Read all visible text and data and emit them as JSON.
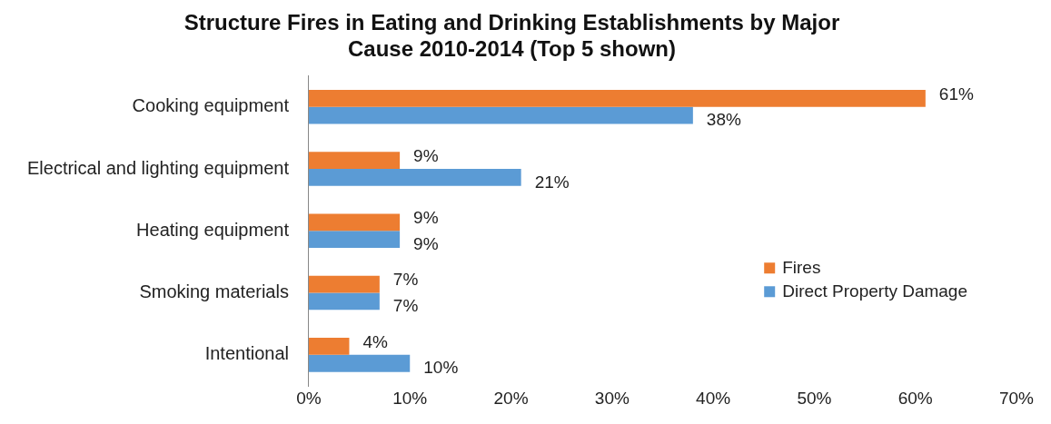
{
  "chart_data": {
    "type": "bar",
    "orientation": "horizontal",
    "title": "Structure Fires in Eating and Drinking Establishments by Major Cause 2010-2014 (Top 5 shown)",
    "categories": [
      "Cooking equipment",
      "Electrical and lighting equipment",
      "Heating equipment",
      "Smoking materials",
      "Intentional"
    ],
    "series": [
      {
        "name": "Fires",
        "color": "#ed7d31",
        "values": [
          61,
          9,
          9,
          7,
          4
        ],
        "value_labels": [
          "61%",
          "9%",
          "9%",
          "7%",
          "4%"
        ]
      },
      {
        "name": "Direct Property Damage",
        "color": "#5b9bd5",
        "values": [
          38,
          21,
          9,
          7,
          10
        ],
        "value_labels": [
          "38%",
          "21%",
          "9%",
          "7%",
          "10%"
        ]
      }
    ],
    "xlim": [
      0,
      70
    ],
    "xticks": [
      {
        "value": 0,
        "label": "0%"
      },
      {
        "value": 10,
        "label": "10%"
      },
      {
        "value": 20,
        "label": "20%"
      },
      {
        "value": 30,
        "label": "30%"
      },
      {
        "value": 40,
        "label": "40%"
      },
      {
        "value": 50,
        "label": "50%"
      },
      {
        "value": 60,
        "label": "60%"
      },
      {
        "value": 70,
        "label": "70%"
      }
    ],
    "grid": false,
    "legend": "right"
  }
}
